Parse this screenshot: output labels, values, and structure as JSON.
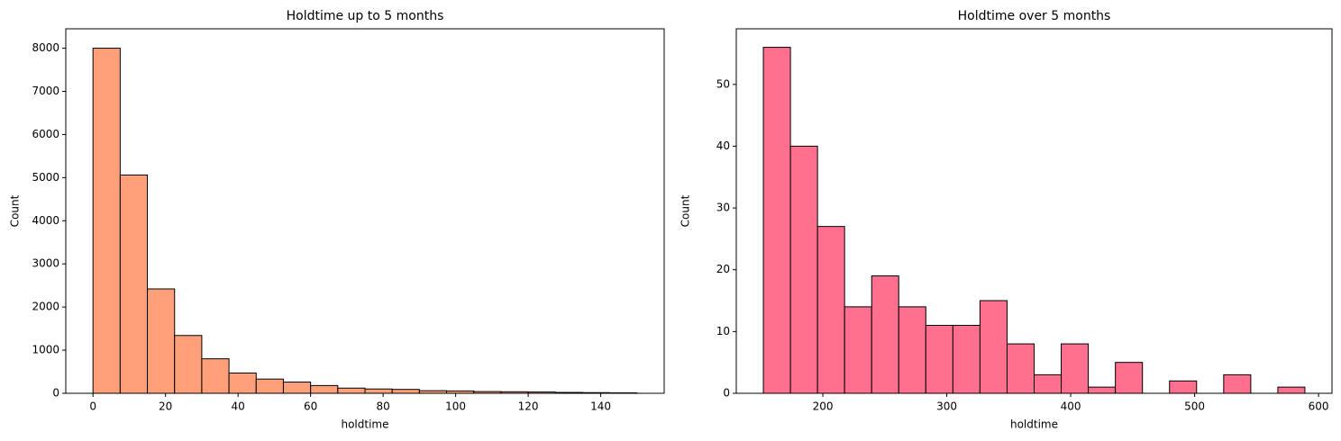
{
  "chart_data": [
    {
      "type": "histogram",
      "title": "Holdtime up to 5 months",
      "xlabel": "holdtime",
      "ylabel": "Count",
      "color": "#ffa07a",
      "bins": [
        0,
        7.5,
        15,
        22.5,
        30,
        37.5,
        45,
        52.5,
        60,
        67.5,
        75,
        82.5,
        90,
        97.5,
        105,
        112.5,
        120,
        127.5,
        135,
        142.5,
        150
      ],
      "values": [
        8000,
        5060,
        2420,
        1340,
        800,
        470,
        330,
        260,
        180,
        120,
        100,
        90,
        60,
        55,
        40,
        35,
        30,
        20,
        15,
        10
      ],
      "xlim": [
        -7.5,
        157.5
      ],
      "xticks": [
        0,
        20,
        40,
        60,
        80,
        100,
        120,
        140
      ],
      "ylim": [
        0,
        8450
      ],
      "yticks": [
        0,
        1000,
        2000,
        3000,
        4000,
        5000,
        6000,
        7000,
        8000
      ]
    },
    {
      "type": "histogram",
      "title": "Holdtime over 5 months",
      "xlabel": "holdtime",
      "ylabel": "Count",
      "color": "#ff708f",
      "bins": [
        152,
        173.85,
        195.7,
        217.55,
        239.4,
        261.25,
        283.1,
        304.95,
        326.8,
        348.65,
        370.5,
        392.35,
        414.2,
        436.05,
        457.9,
        479.75,
        501.6,
        523.45,
        545.3,
        567.15,
        589
      ],
      "values": [
        56,
        40,
        27,
        14,
        19,
        14,
        11,
        11,
        15,
        8,
        3,
        8,
        1,
        5,
        0,
        2,
        0,
        3,
        0,
        1
      ],
      "xlim": [
        130.15,
        610.85
      ],
      "xticks": [
        200,
        300,
        400,
        500,
        600
      ],
      "ylim": [
        0,
        59
      ],
      "yticks": [
        0,
        10,
        20,
        30,
        40,
        50
      ]
    }
  ]
}
